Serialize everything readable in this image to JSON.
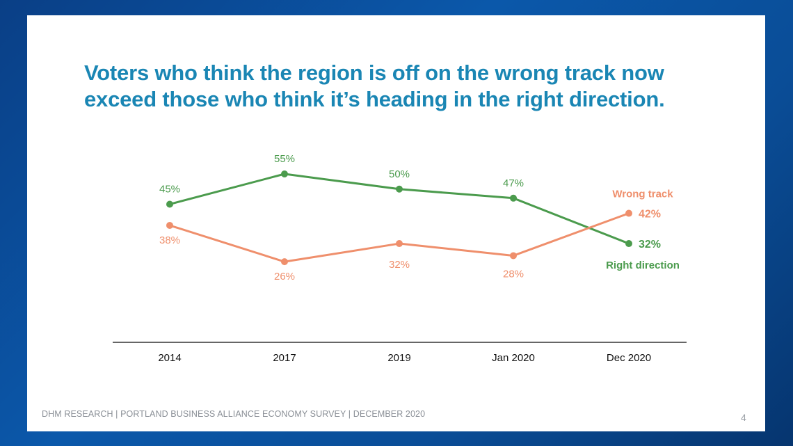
{
  "slide": {
    "title_line1": "Voters who think the region is off on the wrong track now",
    "title_line2": "exceed those who think it’s heading in the right direction.",
    "footer": "DHM RESEARCH | PORTLAND BUSINESS ALLIANCE ECONOMY SURVEY | DECEMBER 2020",
    "page_number": "4"
  },
  "colors": {
    "right_direction": "#4b9b4d",
    "wrong_track": "#ef8f6c",
    "title": "#1a86b4",
    "axis": "#333333"
  },
  "chart_data": {
    "type": "line",
    "categories": [
      "2014",
      "2017",
      "2019",
      "Jan 2020",
      "Dec 2020"
    ],
    "series": [
      {
        "name": "Right direction",
        "key": "right_direction",
        "values": [
          45,
          55,
          50,
          47,
          32
        ],
        "labels": [
          "45%",
          "55%",
          "50%",
          "47%",
          "32%"
        ]
      },
      {
        "name": "Wrong track",
        "key": "wrong_track",
        "values": [
          38,
          26,
          32,
          28,
          42
        ],
        "labels": [
          "38%",
          "26%",
          "32%",
          "28%",
          "42%"
        ]
      }
    ],
    "title": "",
    "xlabel": "",
    "ylabel": "",
    "ylim": [
      0,
      70
    ],
    "grid": false,
    "legend": "series labels at right end of lines"
  }
}
